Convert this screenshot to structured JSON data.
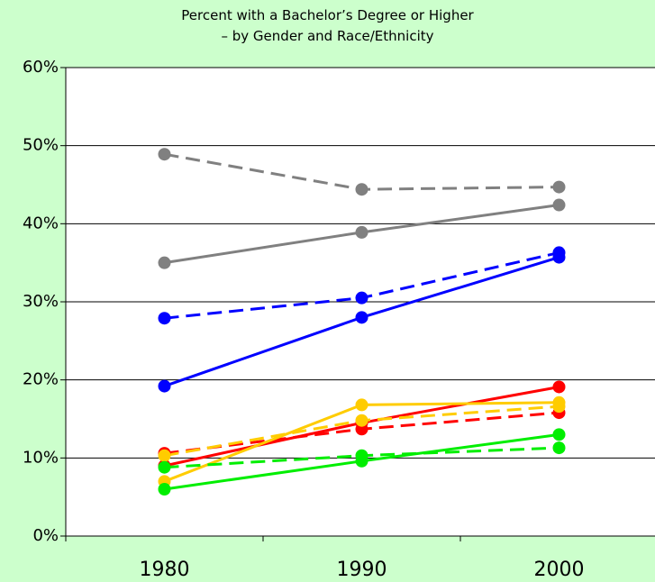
{
  "chart_data": {
    "type": "line",
    "title": "Percent with a Bachelor’s Degree or Higher – by Gender and Race/Ethnicity",
    "categories": [
      "1980",
      "1990",
      "2000"
    ],
    "series": [
      {
        "color": "#808080",
        "dashed": true,
        "values": [
          48.9,
          44.4,
          44.7
        ]
      },
      {
        "color": "#808080",
        "dashed": false,
        "values": [
          35.0,
          38.9,
          42.4
        ]
      },
      {
        "color": "#0000ff",
        "dashed": true,
        "values": [
          27.9,
          30.5,
          36.3
        ]
      },
      {
        "color": "#0000ff",
        "dashed": false,
        "values": [
          19.2,
          28.0,
          35.7
        ]
      },
      {
        "color": "#ff0000",
        "dashed": false,
        "values": [
          9.0,
          14.5,
          19.1
        ]
      },
      {
        "color": "#ff0000",
        "dashed": true,
        "values": [
          10.6,
          13.7,
          15.8
        ]
      },
      {
        "color": "#ffcc00",
        "dashed": false,
        "values": [
          7.0,
          16.8,
          17.1
        ]
      },
      {
        "color": "#ffcc00",
        "dashed": true,
        "values": [
          10.3,
          14.8,
          16.6
        ]
      },
      {
        "color": "#00ee00",
        "dashed": false,
        "values": [
          6.0,
          9.6,
          13.0
        ]
      },
      {
        "color": "#00ee00",
        "dashed": true,
        "values": [
          8.8,
          10.3,
          11.3
        ]
      }
    ],
    "ylim": [
      0,
      60
    ],
    "yticks": [
      {
        "value": 0,
        "label": "0%"
      },
      {
        "value": 10,
        "label": "10%"
      },
      {
        "value": 20,
        "label": "20%"
      },
      {
        "value": 30,
        "label": "30%"
      },
      {
        "value": 40,
        "label": "40%"
      },
      {
        "value": 50,
        "label": "50%"
      },
      {
        "value": 60,
        "label": "60%"
      }
    ],
    "grid": true
  }
}
